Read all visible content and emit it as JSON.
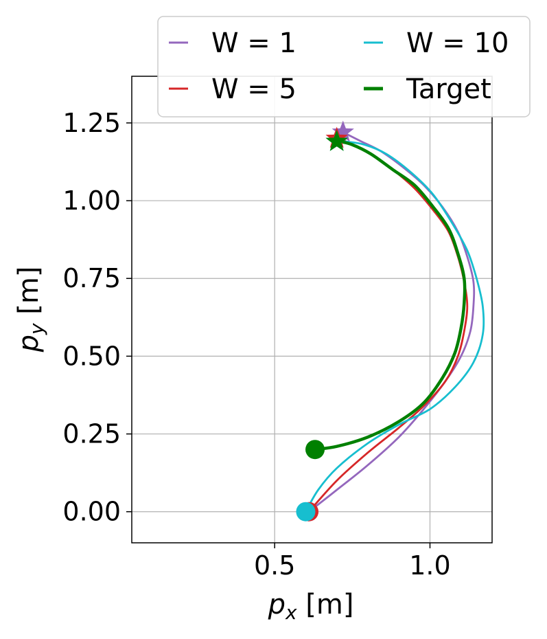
{
  "chart_data": {
    "type": "line",
    "xlabel_var": "p",
    "xlabel_sub": "x",
    "xlabel_unit": " [m]",
    "ylabel_var": "p",
    "ylabel_sub": "y",
    "ylabel_unit": " [m]",
    "xlim": [
      0.04,
      1.2
    ],
    "ylim": [
      -0.1,
      1.4
    ],
    "xticks": [
      0.5,
      1.0
    ],
    "xtick_labels": [
      "0.5",
      "1.0"
    ],
    "yticks": [
      0.0,
      0.25,
      0.5,
      0.75,
      1.0,
      1.25
    ],
    "ytick_labels": [
      "0.00",
      "0.25",
      "0.50",
      "0.75",
      "1.00",
      "1.25"
    ],
    "grid": true,
    "legend_placement": "top-right, outside above axes",
    "series": [
      {
        "name": "W = 1",
        "color": "#9467bd",
        "start_marker": "circle",
        "end_marker": "star",
        "x": [
          0.61,
          0.7,
          0.8,
          0.9,
          0.98,
          1.05,
          1.1,
          1.13,
          1.14,
          1.14,
          1.12,
          1.09,
          1.04,
          0.98,
          0.91,
          0.84,
          0.78,
          0.74,
          0.72
        ],
        "y": [
          0.0,
          0.07,
          0.15,
          0.24,
          0.33,
          0.42,
          0.5,
          0.58,
          0.66,
          0.74,
          0.82,
          0.9,
          0.98,
          1.05,
          1.11,
          1.16,
          1.19,
          1.21,
          1.22
        ]
      },
      {
        "name": "W = 5",
        "color": "#d62728",
        "start_marker": "circle",
        "end_marker": "star",
        "x": [
          0.61,
          0.7,
          0.8,
          0.9,
          0.98,
          1.05,
          1.09,
          1.11,
          1.12,
          1.11,
          1.09,
          1.06,
          1.01,
          0.95,
          0.88,
          0.81,
          0.75,
          0.71,
          0.7
        ],
        "y": [
          0.0,
          0.1,
          0.19,
          0.27,
          0.34,
          0.42,
          0.5,
          0.58,
          0.66,
          0.74,
          0.82,
          0.9,
          0.97,
          1.04,
          1.1,
          1.15,
          1.18,
          1.2,
          1.2
        ]
      },
      {
        "name": "W = 10",
        "color": "#17becf",
        "start_marker": "circle",
        "end_marker": "star",
        "x": [
          0.6,
          0.64,
          0.7,
          0.8,
          0.9,
          1.0,
          1.08,
          1.14,
          1.17,
          1.17,
          1.15,
          1.12,
          1.07,
          1.01,
          0.94,
          0.86,
          0.79,
          0.73,
          0.7
        ],
        "y": [
          0.0,
          0.07,
          0.14,
          0.22,
          0.28,
          0.33,
          0.4,
          0.48,
          0.57,
          0.66,
          0.75,
          0.84,
          0.93,
          1.02,
          1.09,
          1.15,
          1.18,
          1.19,
          1.19
        ]
      },
      {
        "name": "Target",
        "color": "#008000",
        "start_marker": "circle",
        "end_marker": "star",
        "x": [
          0.63,
          0.7,
          0.8,
          0.9,
          0.98,
          1.04,
          1.08,
          1.1,
          1.11,
          1.11,
          1.09,
          1.06,
          1.01,
          0.95,
          0.88,
          0.81,
          0.75,
          0.71,
          0.7
        ],
        "y": [
          0.2,
          0.21,
          0.24,
          0.29,
          0.35,
          0.43,
          0.51,
          0.59,
          0.67,
          0.75,
          0.83,
          0.91,
          0.98,
          1.05,
          1.1,
          1.15,
          1.18,
          1.19,
          1.19
        ]
      }
    ]
  }
}
